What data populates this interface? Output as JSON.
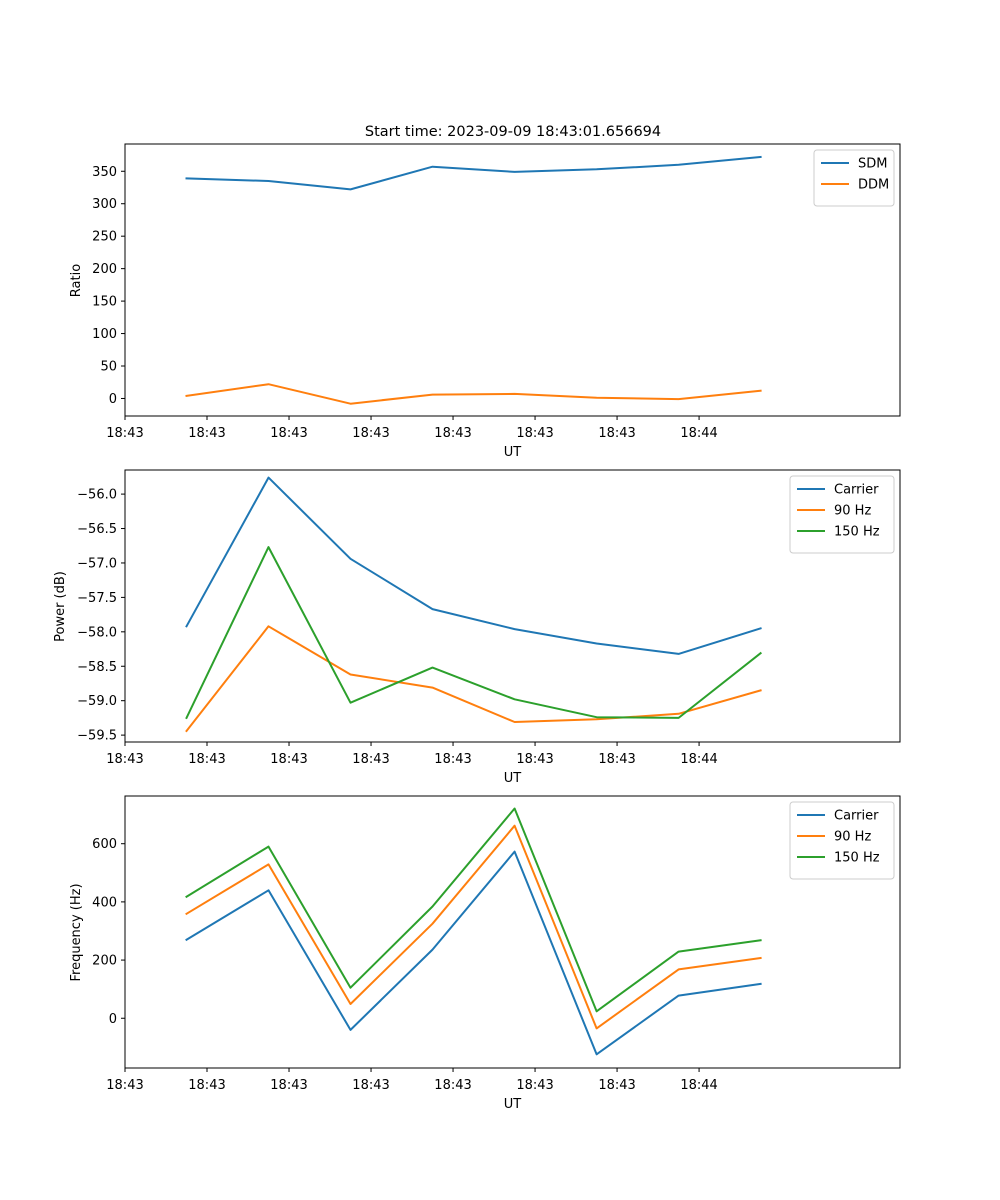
{
  "chart_data": [
    {
      "type": "line",
      "title": "Start time: 2023-09-09 18:43:01.656694",
      "xlabel": "UT",
      "ylabel": "Ratio",
      "x_tick_labels": [
        "18:43",
        "18:43",
        "18:43",
        "18:43",
        "18:43",
        "18:43",
        "18:43"
      ],
      "x_last_tick_label": "18:44",
      "x": [
        1,
        2,
        3,
        4,
        5,
        6,
        7,
        8
      ],
      "xlim": [
        0.25,
        9.7
      ],
      "y_ticks": [
        0,
        50,
        100,
        150,
        200,
        250,
        300,
        350
      ],
      "ylim": [
        -27,
        392
      ],
      "legend_position": "top-right",
      "series": [
        {
          "name": "SDM",
          "color": "#1f77b4",
          "values": [
            339,
            335,
            322,
            357,
            349,
            353,
            360,
            372
          ]
        },
        {
          "name": "DDM",
          "color": "#ff7f0e",
          "values": [
            4,
            22,
            -8,
            6,
            7,
            1,
            -1,
            12
          ]
        }
      ]
    },
    {
      "type": "line",
      "title": "",
      "xlabel": "UT",
      "ylabel": "Power (dB)",
      "x_tick_labels": [
        "18:43",
        "18:43",
        "18:43",
        "18:43",
        "18:43",
        "18:43",
        "18:43"
      ],
      "x_last_tick_label": "18:44",
      "x": [
        1,
        2,
        3,
        4,
        5,
        6,
        7,
        8
      ],
      "xlim": [
        0.25,
        9.7
      ],
      "y_ticks": [
        -59.5,
        -59.0,
        -58.5,
        -58.0,
        -57.5,
        -57.0,
        -56.5,
        -56.0
      ],
      "y_tick_labels": [
        "−59.5",
        "−59.0",
        "−58.5",
        "−58.0",
        "−57.5",
        "−57.0",
        "−56.5",
        "−56.0"
      ],
      "ylim": [
        -59.6,
        -55.65
      ],
      "legend_position": "top-right",
      "series": [
        {
          "name": "Carrier",
          "color": "#1f77b4",
          "values": [
            -57.92,
            -55.76,
            -56.94,
            -57.67,
            -57.96,
            -58.17,
            -58.32,
            -57.95
          ]
        },
        {
          "name": "90 Hz",
          "color": "#ff7f0e",
          "values": [
            -59.44,
            -57.92,
            -58.62,
            -58.81,
            -59.31,
            -59.27,
            -59.19,
            -58.85
          ]
        },
        {
          "name": "150 Hz",
          "color": "#2ca02c",
          "values": [
            -59.25,
            -56.77,
            -59.03,
            -58.52,
            -58.98,
            -59.24,
            -59.25,
            -58.31
          ]
        }
      ]
    },
    {
      "type": "line",
      "title": "",
      "xlabel": "UT",
      "ylabel": "Frequency (Hz)",
      "x_tick_labels": [
        "18:43",
        "18:43",
        "18:43",
        "18:43",
        "18:43",
        "18:43",
        "18:43"
      ],
      "x_last_tick_label": "18:44",
      "x": [
        1,
        2,
        3,
        4,
        5,
        6,
        7,
        8
      ],
      "xlim": [
        0.25,
        9.7
      ],
      "y_ticks": [
        0,
        200,
        400,
        600
      ],
      "ylim": [
        -171,
        764
      ],
      "legend_position": "top-right",
      "series": [
        {
          "name": "Carrier",
          "color": "#1f77b4",
          "values": [
            270,
            440,
            -40,
            236,
            573,
            -124,
            78,
            118
          ]
        },
        {
          "name": "90 Hz",
          "color": "#ff7f0e",
          "values": [
            359,
            529,
            49,
            325,
            662,
            -35,
            168,
            207
          ]
        },
        {
          "name": "150 Hz",
          "color": "#2ca02c",
          "values": [
            418,
            590,
            105,
            384,
            721,
            24,
            229,
            268
          ]
        }
      ]
    }
  ]
}
